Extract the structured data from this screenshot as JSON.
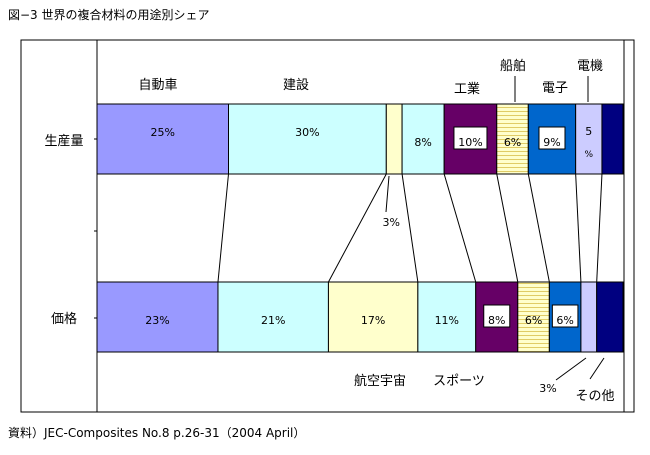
{
  "title": "図−3 世界の複合材料の用途別シェア",
  "source": "資料）JEC-Composites No.8 p.26-31（2004 April）",
  "chart_data": {
    "type": "bar",
    "orientation": "horizontal",
    "stacked": "100%",
    "categories": [
      "生産量",
      "価格"
    ],
    "series": [
      {
        "name": "自動車",
        "color": "#9999ff",
        "values": [
          25,
          23
        ],
        "labels": [
          "25%",
          "23%"
        ]
      },
      {
        "name": "建設",
        "color": "#ccffff",
        "values": [
          30,
          21
        ],
        "labels": [
          "30%",
          "21%"
        ]
      },
      {
        "name": "航空宇宙",
        "color": "#ffffcc",
        "values": [
          3,
          17
        ],
        "labels": [
          "3%",
          "17%"
        ]
      },
      {
        "name": "スポーツ",
        "color": "#ccffff",
        "values": [
          8,
          11
        ],
        "labels": [
          "8%",
          "11%"
        ]
      },
      {
        "name": "工業",
        "color": "#660066",
        "values": [
          10,
          8
        ],
        "labels": [
          "10%",
          "8%"
        ]
      },
      {
        "name": "船舶",
        "color": "#ffffcc",
        "pattern": "h-stripes",
        "values": [
          6,
          6
        ],
        "labels": [
          "6%",
          "6%"
        ]
      },
      {
        "name": "電子",
        "color": "#0066cc",
        "values": [
          9,
          6
        ],
        "labels": [
          "9%",
          "6%"
        ]
      },
      {
        "name": "電機",
        "color": "#ccccff",
        "values": [
          5,
          3
        ],
        "labels": [
          "5%",
          "3%"
        ]
      },
      {
        "name": "その他",
        "color": "#000080",
        "values": [
          4,
          5
        ],
        "labels": [
          "",
          ""
        ]
      }
    ],
    "grid": false,
    "legend": "none",
    "border": true
  }
}
